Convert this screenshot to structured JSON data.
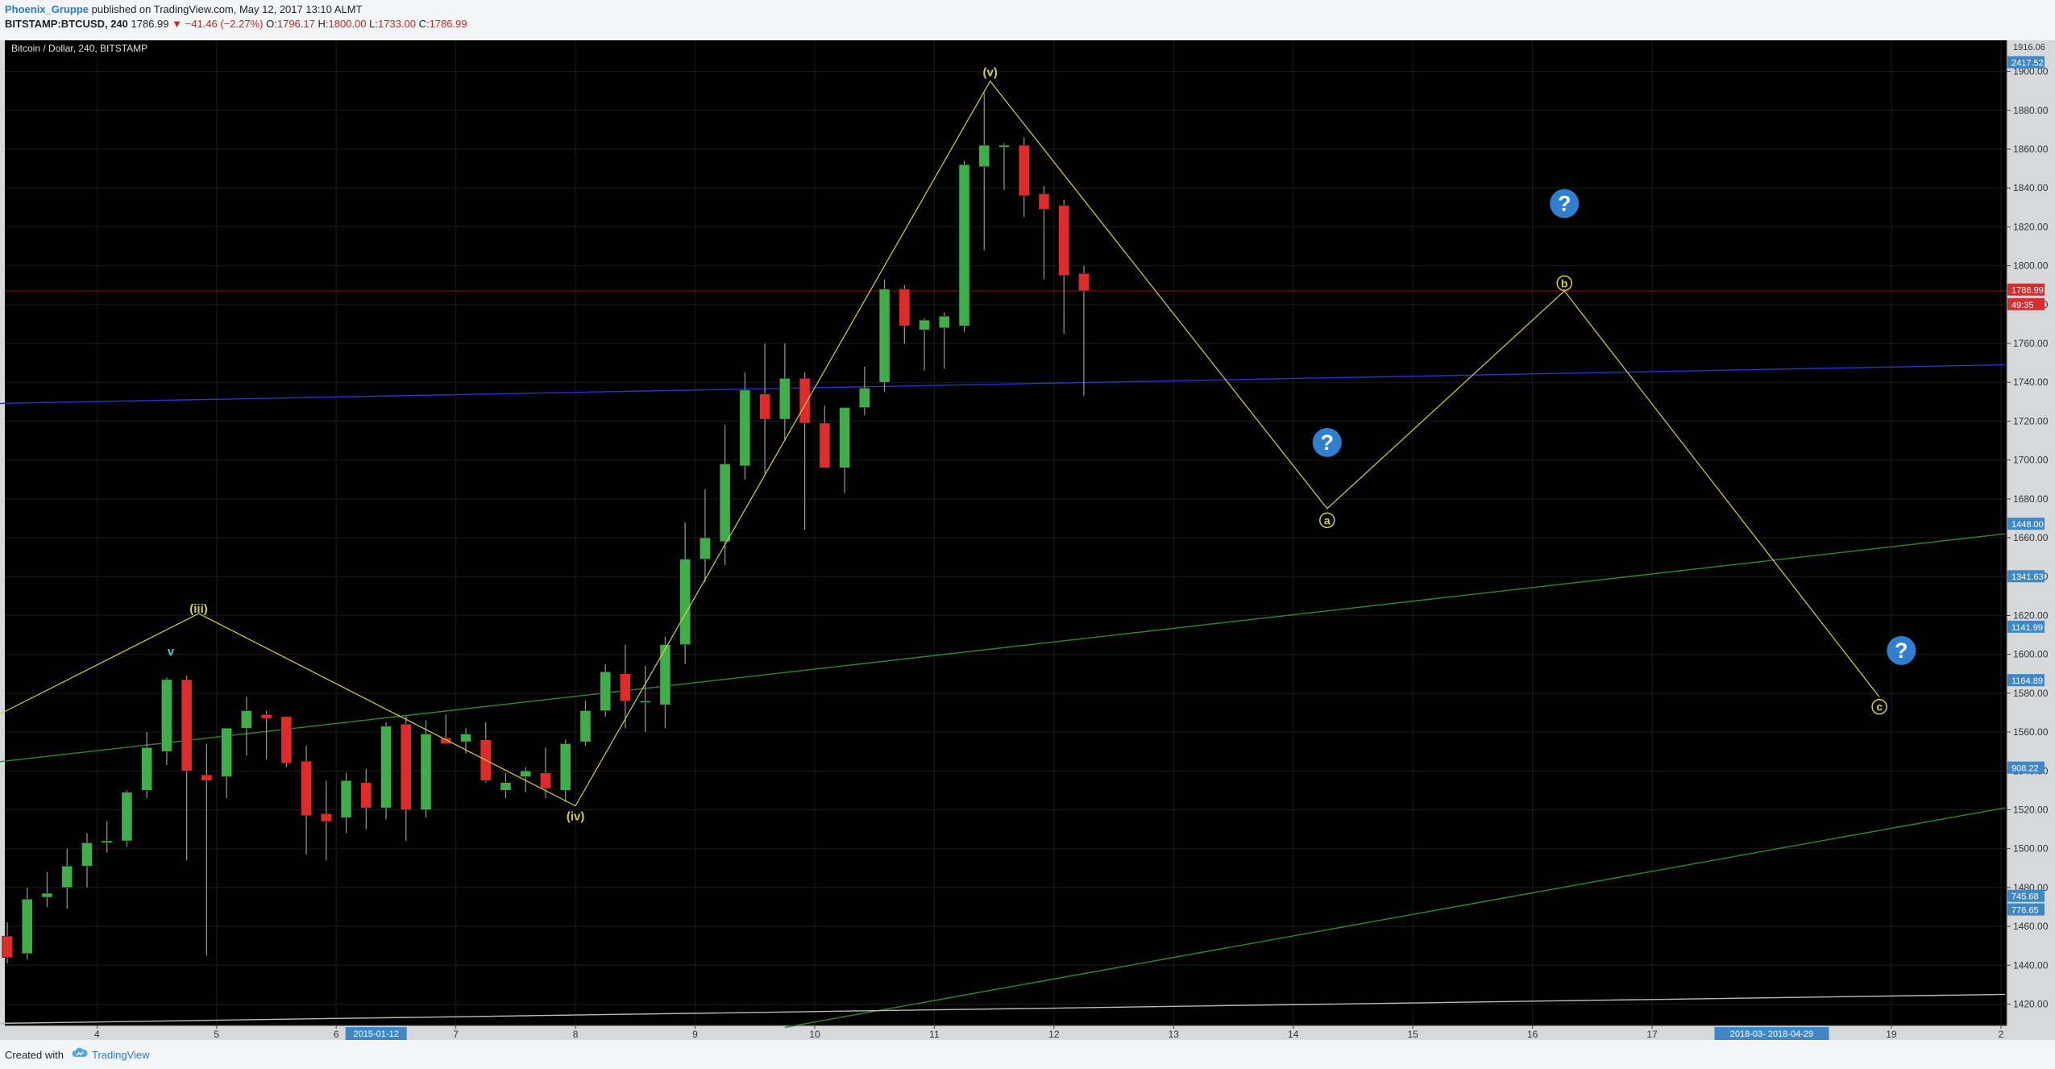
{
  "header": {
    "author": "Phoenix_Gruppe",
    "published": "published on TradingView.com, May 12, 2017 13:10 ALMT",
    "symbol": "BITSTAMP:BTCUSD, 240",
    "last": "1786.99",
    "change_arrow": "▼",
    "change": "−41.46 (−2.27%)",
    "o_label": "O:",
    "o_value": "1796.17",
    "h_label": "H:",
    "h_value": "1800.00",
    "l_label": "L:",
    "l_value": "1733.00",
    "c_label": "C:",
    "c_value": "1786.99"
  },
  "footer": {
    "created_with": "Created with",
    "brand": "TradingView",
    "logo_icon": "tradingview-cloud-icon"
  },
  "colors": {
    "background": "#000000",
    "up": "#3fae49",
    "down": "#e02b2b",
    "wick": "#9a9a9a",
    "wave": "#d8d23a",
    "grid": "#1c1c1c",
    "axis_text": "#cfcfcf",
    "blue_line": "#2f2fd6",
    "green_line": "#2e8b2e",
    "white_line": "#bbbbbb",
    "price_line": "#8a1a1a",
    "axis_label_blue": "#3f88c5",
    "axis_label_red": "#d32f2f",
    "question_icon": "#2f7fd0"
  },
  "chart_data": {
    "type": "candlestick",
    "title": "Bitcoin / Dollar, 240, BITSTAMP",
    "interval": "240",
    "exchange": "BITSTAMP",
    "ylim": [
      1409,
      1916
    ],
    "xlim": [
      -0.5,
      100.2
    ],
    "y_ticks": [
      1420,
      1440,
      1460,
      1480,
      1500,
      1520,
      1540,
      1560,
      1580,
      1600,
      1620,
      1640,
      1660,
      1680,
      1700,
      1720,
      1740,
      1760,
      1780,
      1800,
      1820,
      1840,
      1860,
      1880,
      1900
    ],
    "y_top_label": "1916.06",
    "x_ticks": [
      {
        "i": 4.5,
        "label": "4"
      },
      {
        "i": 10.5,
        "label": "5"
      },
      {
        "i": 16.5,
        "label": "6"
      },
      {
        "i": 22.5,
        "label": "7"
      },
      {
        "i": 28.5,
        "label": "8"
      },
      {
        "i": 34.5,
        "label": "9"
      },
      {
        "i": 40.5,
        "label": "10"
      },
      {
        "i": 46.5,
        "label": "11"
      },
      {
        "i": 52.5,
        "label": "12"
      },
      {
        "i": 58.5,
        "label": "13"
      },
      {
        "i": 64.5,
        "label": "14"
      },
      {
        "i": 70.5,
        "label": "15"
      },
      {
        "i": 76.5,
        "label": "16"
      },
      {
        "i": 82.5,
        "label": "17"
      },
      {
        "i": 94.5,
        "label": "19"
      },
      {
        "i": 100.0,
        "label": "2"
      }
    ],
    "x_badges": [
      {
        "i": 18.5,
        "label": "2015-01-12"
      },
      {
        "i": 88.5,
        "label": "2018-03-  2018-04-29"
      }
    ],
    "candles": [
      {
        "o": 1455,
        "h": 1462,
        "l": 1441,
        "c": 1444
      },
      {
        "o": 1446,
        "h": 1480,
        "l": 1443,
        "c": 1474
      },
      {
        "o": 1475,
        "h": 1488,
        "l": 1470,
        "c": 1477
      },
      {
        "o": 1480,
        "h": 1500,
        "l": 1469,
        "c": 1491
      },
      {
        "o": 1491,
        "h": 1508,
        "l": 1480,
        "c": 1503
      },
      {
        "o": 1503,
        "h": 1514,
        "l": 1498,
        "c": 1504
      },
      {
        "o": 1504,
        "h": 1530,
        "l": 1501,
        "c": 1529
      },
      {
        "o": 1530,
        "h": 1560,
        "l": 1526,
        "c": 1552
      },
      {
        "o": 1550,
        "h": 1588,
        "l": 1543,
        "c": 1587
      },
      {
        "o": 1587,
        "h": 1589,
        "l": 1494,
        "c": 1540
      },
      {
        "o": 1538,
        "h": 1554,
        "l": 1445,
        "c": 1535
      },
      {
        "o": 1537,
        "h": 1562,
        "l": 1526,
        "c": 1562
      },
      {
        "o": 1562,
        "h": 1578,
        "l": 1548,
        "c": 1571
      },
      {
        "o": 1569,
        "h": 1571,
        "l": 1546,
        "c": 1567
      },
      {
        "o": 1568,
        "h": 1568,
        "l": 1542,
        "c": 1544
      },
      {
        "o": 1545,
        "h": 1553,
        "l": 1497,
        "c": 1517
      },
      {
        "o": 1518,
        "h": 1535,
        "l": 1494,
        "c": 1514
      },
      {
        "o": 1516,
        "h": 1539,
        "l": 1508,
        "c": 1535
      },
      {
        "o": 1534,
        "h": 1541,
        "l": 1510,
        "c": 1521
      },
      {
        "o": 1521,
        "h": 1565,
        "l": 1515,
        "c": 1563
      },
      {
        "o": 1564,
        "h": 1568,
        "l": 1504,
        "c": 1520
      },
      {
        "o": 1520,
        "h": 1566,
        "l": 1516,
        "c": 1559
      },
      {
        "o": 1557,
        "h": 1569,
        "l": 1554,
        "c": 1554
      },
      {
        "o": 1555,
        "h": 1562,
        "l": 1549,
        "c": 1559
      },
      {
        "o": 1556,
        "h": 1565,
        "l": 1534,
        "c": 1535
      },
      {
        "o": 1530,
        "h": 1539,
        "l": 1526,
        "c": 1534
      },
      {
        "o": 1537,
        "h": 1542,
        "l": 1529,
        "c": 1540
      },
      {
        "o": 1539,
        "h": 1552,
        "l": 1526,
        "c": 1531
      },
      {
        "o": 1530,
        "h": 1556,
        "l": 1524,
        "c": 1554
      },
      {
        "o": 1555,
        "h": 1576,
        "l": 1553,
        "c": 1571
      },
      {
        "o": 1571,
        "h": 1595,
        "l": 1568,
        "c": 1591
      },
      {
        "o": 1590,
        "h": 1605,
        "l": 1562,
        "c": 1576
      },
      {
        "o": 1576,
        "h": 1594,
        "l": 1560,
        "c": 1576
      },
      {
        "o": 1574,
        "h": 1609,
        "l": 1562,
        "c": 1605
      },
      {
        "o": 1605,
        "h": 1668,
        "l": 1595,
        "c": 1649
      },
      {
        "o": 1649,
        "h": 1685,
        "l": 1637,
        "c": 1660
      },
      {
        "o": 1658,
        "h": 1718,
        "l": 1646,
        "c": 1698
      },
      {
        "o": 1697,
        "h": 1745,
        "l": 1690,
        "c": 1736
      },
      {
        "o": 1734,
        "h": 1760,
        "l": 1693,
        "c": 1721
      },
      {
        "o": 1721,
        "h": 1760,
        "l": 1710,
        "c": 1742
      },
      {
        "o": 1742,
        "h": 1745,
        "l": 1664,
        "c": 1719
      },
      {
        "o": 1719,
        "h": 1728,
        "l": 1696,
        "c": 1696
      },
      {
        "o": 1696,
        "h": 1727,
        "l": 1683,
        "c": 1727
      },
      {
        "o": 1727,
        "h": 1748,
        "l": 1723,
        "c": 1737
      },
      {
        "o": 1740,
        "h": 1793,
        "l": 1735,
        "c": 1788
      },
      {
        "o": 1788,
        "h": 1790,
        "l": 1760,
        "c": 1769
      },
      {
        "o": 1767,
        "h": 1773,
        "l": 1746,
        "c": 1772
      },
      {
        "o": 1768,
        "h": 1776,
        "l": 1747,
        "c": 1774
      },
      {
        "o": 1769,
        "h": 1854,
        "l": 1766,
        "c": 1852
      },
      {
        "o": 1851,
        "h": 1889,
        "l": 1808,
        "c": 1862
      },
      {
        "o": 1861,
        "h": 1863,
        "l": 1839,
        "c": 1862
      },
      {
        "o": 1862,
        "h": 1866,
        "l": 1825,
        "c": 1836
      },
      {
        "o": 1837,
        "h": 1841,
        "l": 1793,
        "c": 1829
      },
      {
        "o": 1831,
        "h": 1834,
        "l": 1765,
        "c": 1795
      },
      {
        "o": 1796,
        "h": 1800,
        "l": 1733,
        "c": 1787
      }
    ],
    "wave_labels": [
      {
        "text": "(iii)",
        "i": 9.6,
        "price": 1619,
        "pos": "above"
      },
      {
        "text": "v",
        "i": 8.2,
        "price": 1597,
        "pos": "above",
        "color": "#3fd0d0"
      },
      {
        "text": "(iv)",
        "i": 28.5,
        "price": 1522,
        "pos": "below"
      },
      {
        "text": "(v)",
        "i": 49.3,
        "price": 1895,
        "pos": "above"
      }
    ],
    "wave_path": [
      [
        -1,
        1566
      ],
      [
        9.6,
        1621
      ],
      [
        28.5,
        1522
      ],
      [
        49.3,
        1895
      ],
      [
        66.2,
        1675
      ],
      [
        78.1,
        1787
      ],
      [
        93.9,
        1578
      ]
    ],
    "projection_labels": [
      {
        "text": "a",
        "i": 66.2,
        "price": 1669
      },
      {
        "text": "b",
        "i": 78.1,
        "price": 1791
      },
      {
        "text": "c",
        "i": 93.9,
        "price": 1573
      }
    ],
    "question_icons": [
      {
        "i": 78.1,
        "price": 1832,
        "icon": "question-circle-icon"
      },
      {
        "i": 66.2,
        "price": 1709,
        "icon": "question-circle-icon"
      },
      {
        "i": 95.0,
        "price": 1602,
        "icon": "question-circle-icon"
      }
    ],
    "trendlines": [
      {
        "name": "blue",
        "from": [
          -1,
          1729
        ],
        "to": [
          100.2,
          1749
        ]
      },
      {
        "name": "green-upper",
        "from": [
          -1,
          1544
        ],
        "to": [
          100.2,
          1662
        ]
      },
      {
        "name": "green-lower",
        "from": [
          39.0,
          1408
        ],
        "to": [
          100.2,
          1521
        ]
      },
      {
        "name": "white",
        "from": [
          -1,
          1410
        ],
        "to": [
          100.2,
          1425
        ]
      }
    ],
    "last_price": 1786.99,
    "price_axis_badges": [
      {
        "price": 1904.5,
        "label": "2417.52",
        "color": "blue"
      },
      {
        "price": 1787.5,
        "label": "1786.99",
        "color": "red"
      },
      {
        "price": 1780.0,
        "label": "49:35",
        "color": "red"
      },
      {
        "price": 1667.0,
        "label": "1448.00",
        "color": "blue"
      },
      {
        "price": 1640.0,
        "label": "1341.63",
        "color": "blue"
      },
      {
        "price": 1614.0,
        "label": "1141.99",
        "color": "blue"
      },
      {
        "price": 1586.5,
        "label": "1164.89",
        "color": "blue"
      },
      {
        "price": 1541.5,
        "label": "908.22",
        "color": "blue"
      },
      {
        "price": 1475.5,
        "label": "745.68",
        "color": "blue"
      },
      {
        "price": 1468.5,
        "label": "776.65",
        "color": "blue"
      }
    ]
  }
}
